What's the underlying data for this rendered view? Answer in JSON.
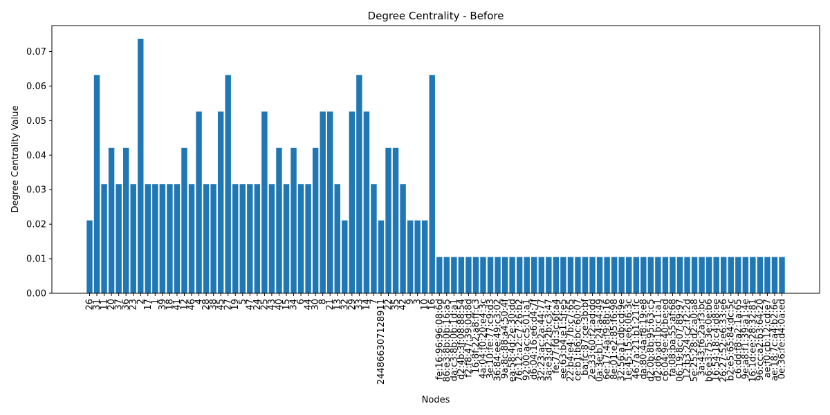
{
  "chart_data": {
    "type": "bar",
    "title": "Degree Centrality - Before",
    "xlabel": "Nodes",
    "ylabel": "Degree Centrality Value",
    "ylim": [
      0,
      0.0775
    ],
    "yticks": [
      "0.00",
      "0.01",
      "0.02",
      "0.03",
      "0.04",
      "0.05",
      "0.06",
      "0.07"
    ],
    "grid": false,
    "bar_color": "#1f77b4",
    "categories": [
      "26",
      "31",
      "11",
      "20",
      "37",
      "36",
      "23",
      "2",
      "17",
      "1",
      "39",
      "18",
      "41",
      "12",
      "46",
      "4",
      "28",
      "38",
      "45",
      "27",
      "19",
      "5",
      "47",
      "24",
      "25",
      "43",
      "40",
      "15",
      "34",
      "6",
      "44",
      "30",
      "8",
      "21",
      "13",
      "32",
      "29",
      "33",
      "14",
      "7",
      "244866307128911",
      "22",
      "35",
      "42",
      "9",
      "3",
      "10",
      "16",
      "fe:16:96:96:08:6d",
      "86:e3:8b:0b:16:a5",
      "da:c3:8b:0b:1d:a1",
      "d2:4b:3f:08:88:54",
      "f2:f8:47:39:0d:8d",
      "16:8f:22:a8:ff:c3",
      "4a:04:f0:20:e4:3c",
      "3e:10:fe:77:c9:d3",
      "36:84:ee:49:c3:02",
      "9a:8c:88:a4:50:4f",
      "ea:58:4d:2e:30:dd",
      "76:12:a2:c7:26:b2",
      "92:00:ac:c5:01:a1",
      "d6:04:16:e6:d4:7f",
      "32:23:ac:2a:44:77",
      "3a:e3:d2:2b:c3:47",
      "fe:77:fd:3c:6f:a4",
      "ee:63:b4:e1:5f:e5",
      "22:b4:e4:7b:c7:65",
      "ce:b1:b6:bc:60:07",
      "ba:fc:87:ce:3b:bf",
      "2e:33:60:f2:ad:dd",
      "0a:3e:b1:24:a4:49",
      "6e:17:4a:f9:8b:16",
      "8e:01:e2:85:f6:98",
      "32:56:a1:db:cd:9e",
      "1e:45:15:e6:06:3c",
      "46:7a:21:b1:21:fc",
      "da:80:4a:f8:19:e8",
      "d2:0b:8b:95:63:c5",
      "d2:d6:ad:1b:c1:a1",
      "c6:04:9e:40:be:ed",
      "fa:08:ba:55:af:68",
      "06:19:8c:07:89:97",
      "12:b3:24:c2:f2:2d",
      "5e:25:28:d2:a0:a8",
      "3a:43:f6:2a:f3:bc",
      "b6:e3:75:3e:0e:b6",
      "16:54:18:c4:d8:ee",
      "26:27:52:e6:33:e6",
      "b2:e5:65:84:dc:5c",
      "c6:dd:f8:a2:1a:65",
      "9e:a8:f1:39:a1:4e",
      "16:1d:ee:28:32:81",
      "96:cc:a2:b3:64:20",
      "ae:f0:cb:12:cd:e7",
      "ae:18:7c:a4:b2:6e",
      "0e:36:fe:d4:0a:ed"
    ],
    "values": [
      0.0211,
      0.0632,
      0.0316,
      0.0421,
      0.0316,
      0.0421,
      0.0316,
      0.0737,
      0.0316,
      0.0316,
      0.0316,
      0.0316,
      0.0316,
      0.0421,
      0.0316,
      0.0526,
      0.0316,
      0.0316,
      0.0526,
      0.0632,
      0.0316,
      0.0316,
      0.0316,
      0.0316,
      0.0526,
      0.0316,
      0.0421,
      0.0316,
      0.0421,
      0.0316,
      0.0316,
      0.0421,
      0.0526,
      0.0526,
      0.0316,
      0.0211,
      0.0526,
      0.0632,
      0.0526,
      0.0316,
      0.0211,
      0.0421,
      0.0421,
      0.0316,
      0.0211,
      0.0211,
      0.0211,
      0.0632,
      0.0105,
      0.0105,
      0.0105,
      0.0105,
      0.0105,
      0.0105,
      0.0105,
      0.0105,
      0.0105,
      0.0105,
      0.0105,
      0.0105,
      0.0105,
      0.0105,
      0.0105,
      0.0105,
      0.0105,
      0.0105,
      0.0105,
      0.0105,
      0.0105,
      0.0105,
      0.0105,
      0.0105,
      0.0105,
      0.0105,
      0.0105,
      0.0105,
      0.0105,
      0.0105,
      0.0105,
      0.0105,
      0.0105,
      0.0105,
      0.0105,
      0.0105,
      0.0105,
      0.0105,
      0.0105,
      0.0105,
      0.0105,
      0.0105,
      0.0105,
      0.0105,
      0.0105,
      0.0105,
      0.0105,
      0.0105
    ]
  }
}
